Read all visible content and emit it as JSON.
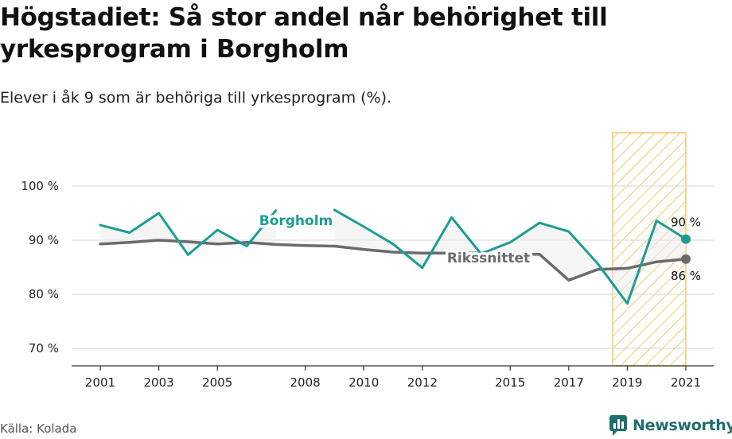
{
  "header": {
    "title": "Högstadiet: Så stor andel når behörighet till yrkesprogram i Borgholm",
    "subtitle": "Elever i åk 9 som är behöriga till yrkesprogram (%)."
  },
  "footer": {
    "source": "Källa: Kolada",
    "brand": "Newsworthy"
  },
  "colors": {
    "borgholm": "#1a9e93",
    "riket": "#6b6b6f",
    "highlight": "#f5c86b",
    "grid": "#dddddd"
  },
  "chart_data": {
    "type": "line",
    "x": [
      2001,
      2002,
      2003,
      2004,
      2005,
      2006,
      2007,
      2008,
      2009,
      2010,
      2011,
      2012,
      2013,
      2014,
      2015,
      2016,
      2017,
      2018,
      2019,
      2020,
      2021
    ],
    "x_ticks": [
      2001,
      2003,
      2005,
      2008,
      2010,
      2012,
      2015,
      2017,
      2019,
      2021
    ],
    "x_tick_labels": [
      "2001",
      "2003",
      "2005",
      "2008",
      "2010",
      "2012",
      "2015",
      "2017",
      "2019",
      "2021"
    ],
    "y_ticks": [
      70,
      80,
      90,
      100
    ],
    "y_tick_labels": [
      "70 %",
      "80 %",
      "90 %",
      "100 %"
    ],
    "ylim": [
      66,
      104
    ],
    "xlim": [
      2000.0,
      2021.8
    ],
    "highlight_range": [
      2018.5,
      2021
    ],
    "series": [
      {
        "name": "Borgholm",
        "key": "borgholm",
        "values": [
          92.8,
          91.4,
          95.0,
          87.3,
          91.9,
          88.9,
          95.5,
          null,
          95.6,
          92.5,
          89.3,
          84.9,
          94.2,
          87.5,
          89.6,
          93.2,
          91.6,
          85.6,
          78.3,
          93.6,
          90.2
        ],
        "end_label": "90 %"
      },
      {
        "name": "Rikssnittet",
        "key": "riket",
        "values": [
          89.3,
          89.6,
          90.0,
          89.7,
          89.3,
          89.6,
          89.2,
          89.0,
          88.9,
          88.3,
          87.8,
          87.6,
          87.6,
          87.6,
          87.4,
          87.4,
          82.6,
          84.6,
          84.8,
          86.0,
          86.5
        ],
        "end_label": "86 %"
      }
    ]
  }
}
